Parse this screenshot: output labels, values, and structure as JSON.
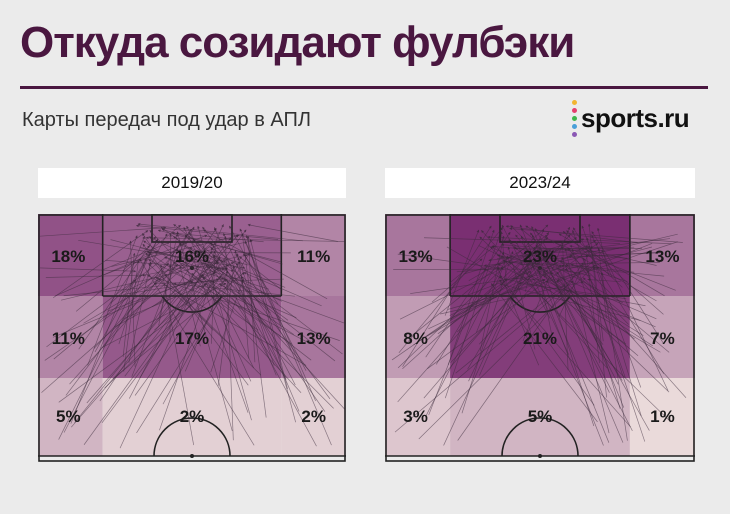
{
  "header": {
    "title": "Откуда созидают фулбэки",
    "subtitle": "Карты передач под удар в АПЛ",
    "logo_text": "sports.ru",
    "logo_dot_colors": [
      "#f2b531",
      "#e53e6e",
      "#3fb44b",
      "#4aa0d8",
      "#8a58b4"
    ]
  },
  "chart_data": [
    {
      "type": "heatmap",
      "title": "2019/20",
      "rows": [
        "final-third",
        "middle-upper",
        "middle-lower"
      ],
      "columns": [
        "left",
        "center",
        "right"
      ],
      "values": [
        [
          18,
          16,
          11
        ],
        [
          11,
          17,
          13
        ],
        [
          5,
          2,
          2
        ]
      ],
      "labels": [
        [
          "18%",
          "16%",
          "11%"
        ],
        [
          "11%",
          "17%",
          "13%"
        ],
        [
          "5%",
          "2%",
          "2%"
        ]
      ],
      "unit": "%"
    },
    {
      "type": "heatmap",
      "title": "2023/24",
      "rows": [
        "final-third",
        "middle-upper",
        "middle-lower"
      ],
      "columns": [
        "left",
        "center",
        "right"
      ],
      "values": [
        [
          13,
          23,
          13
        ],
        [
          8,
          21,
          7
        ],
        [
          3,
          5,
          1
        ]
      ],
      "labels": [
        [
          "13%",
          "23%",
          "13%"
        ],
        [
          "8%",
          "21%",
          "7%"
        ],
        [
          "3%",
          "5%",
          "1%"
        ]
      ],
      "unit": "%"
    }
  ],
  "colors": {
    "title": "#4a1740",
    "arrow": "#3a2a3a",
    "scale_low": "#f2e7e2",
    "scale_high": "#7a2f72"
  }
}
